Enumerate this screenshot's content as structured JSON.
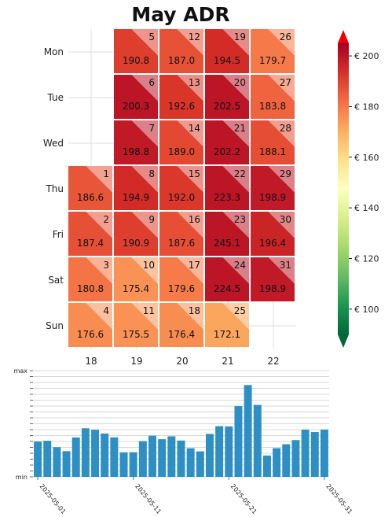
{
  "title": "May ADR",
  "chart_data": [
    {
      "type": "heatmap",
      "title": "May ADR",
      "rows": [
        "Mon",
        "Tue",
        "Wed",
        "Thu",
        "Fri",
        "Sat",
        "Sun"
      ],
      "columns": [
        "18",
        "19",
        "20",
        "21",
        "22"
      ],
      "cells": [
        {
          "day": 1,
          "row": 3,
          "col": 0,
          "value": 186.6
        },
        {
          "day": 2,
          "row": 4,
          "col": 0,
          "value": 187.4
        },
        {
          "day": 3,
          "row": 5,
          "col": 0,
          "value": 180.8
        },
        {
          "day": 4,
          "row": 6,
          "col": 0,
          "value": 176.6
        },
        {
          "day": 5,
          "row": 0,
          "col": 1,
          "value": 190.8
        },
        {
          "day": 6,
          "row": 1,
          "col": 1,
          "value": 200.3
        },
        {
          "day": 7,
          "row": 2,
          "col": 1,
          "value": 198.8
        },
        {
          "day": 8,
          "row": 3,
          "col": 1,
          "value": 194.9
        },
        {
          "day": 9,
          "row": 4,
          "col": 1,
          "value": 190.9
        },
        {
          "day": 10,
          "row": 5,
          "col": 1,
          "value": 175.4
        },
        {
          "day": 11,
          "row": 6,
          "col": 1,
          "value": 175.5
        },
        {
          "day": 12,
          "row": 0,
          "col": 2,
          "value": 187.0
        },
        {
          "day": 13,
          "row": 1,
          "col": 2,
          "value": 192.6
        },
        {
          "day": 14,
          "row": 2,
          "col": 2,
          "value": 189.0
        },
        {
          "day": 15,
          "row": 3,
          "col": 2,
          "value": 192.0
        },
        {
          "day": 16,
          "row": 4,
          "col": 2,
          "value": 187.6
        },
        {
          "day": 17,
          "row": 5,
          "col": 2,
          "value": 179.6
        },
        {
          "day": 18,
          "row": 6,
          "col": 2,
          "value": 176.4
        },
        {
          "day": 19,
          "row": 0,
          "col": 3,
          "value": 194.5
        },
        {
          "day": 20,
          "row": 1,
          "col": 3,
          "value": 202.5
        },
        {
          "day": 21,
          "row": 2,
          "col": 3,
          "value": 202.2
        },
        {
          "day": 22,
          "row": 3,
          "col": 3,
          "value": 223.3
        },
        {
          "day": 23,
          "row": 4,
          "col": 3,
          "value": 245.1
        },
        {
          "day": 24,
          "row": 5,
          "col": 3,
          "value": 224.5
        },
        {
          "day": 25,
          "row": 6,
          "col": 3,
          "value": 172.1
        },
        {
          "day": 26,
          "row": 0,
          "col": 4,
          "value": 179.7
        },
        {
          "day": 27,
          "row": 1,
          "col": 4,
          "value": 183.8
        },
        {
          "day": 28,
          "row": 2,
          "col": 4,
          "value": 188.1
        },
        {
          "day": 29,
          "row": 3,
          "col": 4,
          "value": 198.9
        },
        {
          "day": 30,
          "row": 4,
          "col": 4,
          "value": 196.4
        },
        {
          "day": 31,
          "row": 5,
          "col": 4,
          "value": 198.9
        }
      ],
      "colorbar": {
        "min": 90,
        "max": 205,
        "ticks": [
          {
            "value": 100,
            "label": "€ 100"
          },
          {
            "value": 120,
            "label": "€ 120"
          },
          {
            "value": 140,
            "label": "€ 140"
          },
          {
            "value": 160,
            "label": "€ 160"
          },
          {
            "value": 180,
            "label": "€ 180"
          },
          {
            "value": 200,
            "label": "€ 200"
          }
        ],
        "colormap": "RdYlGn_r",
        "extend": "both"
      }
    },
    {
      "type": "bar",
      "title": "",
      "ytick_labels": {
        "max": "max",
        "min": "min"
      },
      "xtick_labels": [
        "2025-05-01",
        "2025-05-11",
        "2025-05-21",
        "2025-05-31"
      ],
      "x": [
        "2025-05-01",
        "2025-05-02",
        "2025-05-03",
        "2025-05-04",
        "2025-05-05",
        "2025-05-06",
        "2025-05-07",
        "2025-05-08",
        "2025-05-09",
        "2025-05-10",
        "2025-05-11",
        "2025-05-12",
        "2025-05-13",
        "2025-05-14",
        "2025-05-15",
        "2025-05-16",
        "2025-05-17",
        "2025-05-18",
        "2025-05-19",
        "2025-05-20",
        "2025-05-21",
        "2025-05-22",
        "2025-05-23",
        "2025-05-24",
        "2025-05-25",
        "2025-05-26",
        "2025-05-27",
        "2025-05-28",
        "2025-05-29",
        "2025-05-30",
        "2025-05-31"
      ],
      "values": [
        186.6,
        187.4,
        180.8,
        176.6,
        190.8,
        200.3,
        198.8,
        194.9,
        190.9,
        175.4,
        175.5,
        187.0,
        192.6,
        189.0,
        192.0,
        187.6,
        179.6,
        176.4,
        194.5,
        202.5,
        202.2,
        223.3,
        245.1,
        224.5,
        172.1,
        179.7,
        183.8,
        188.1,
        198.9,
        196.4,
        198.9
      ],
      "bar_color": "#2d8fc3",
      "grid": true
    }
  ]
}
